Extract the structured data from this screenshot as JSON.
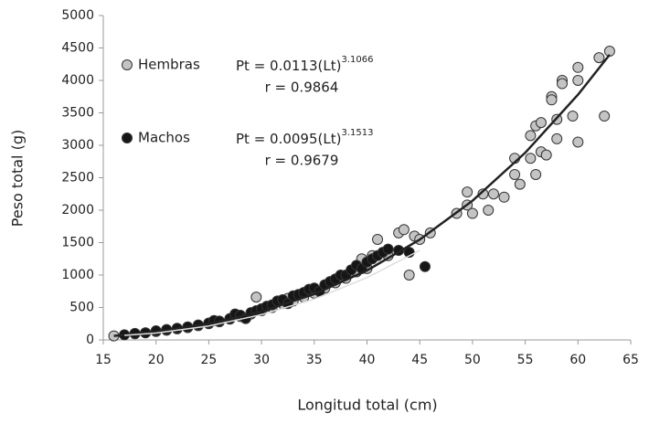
{
  "chart_data": {
    "type": "scatter",
    "xlabel": "Longitud total (cm)",
    "ylabel": "Peso total (g)",
    "xlim": [
      15,
      65
    ],
    "ylim": [
      0,
      5000
    ],
    "xticks": [
      15,
      20,
      25,
      30,
      35,
      40,
      45,
      50,
      55,
      60,
      65
    ],
    "yticks": [
      0,
      500,
      1000,
      1500,
      2000,
      2500,
      3000,
      3500,
      4000,
      4500,
      5000
    ],
    "grid": false,
    "series": [
      {
        "name": "Hembras",
        "color": "#c4c4c4",
        "x": [
          16,
          18,
          19,
          20,
          21,
          22,
          23,
          24,
          25,
          26,
          27,
          28,
          29,
          29.5,
          30,
          31,
          32,
          32.5,
          33,
          34,
          35,
          36,
          37,
          38,
          39,
          39.5,
          40,
          40.5,
          41,
          42,
          43,
          43.5,
          44,
          44.5,
          45,
          46,
          48.5,
          49.5,
          49.5,
          50,
          51,
          51.5,
          52,
          53,
          54,
          54,
          54.5,
          55.5,
          55.5,
          56,
          56,
          56.5,
          56.5,
          57,
          57.5,
          57.5,
          58,
          58,
          58.5,
          58.5,
          59.5,
          60,
          60,
          60,
          62,
          62.5,
          63
        ],
        "values": [
          62,
          95,
          110,
          130,
          150,
          170,
          190,
          220,
          250,
          280,
          320,
          360,
          400,
          660,
          450,
          500,
          560,
          640,
          600,
          660,
          720,
          800,
          880,
          950,
          1050,
          1250,
          1100,
          1300,
          1550,
          1300,
          1650,
          1700,
          1000,
          1600,
          1550,
          1650,
          1950,
          2280,
          2080,
          1950,
          2250,
          2000,
          2250,
          2200,
          2800,
          2550,
          2400,
          3150,
          2800,
          2550,
          3300,
          2900,
          3350,
          2850,
          3750,
          3700,
          3100,
          3400,
          4000,
          3950,
          3450,
          3050,
          4000,
          4200,
          4350,
          3450,
          4450
        ]
      },
      {
        "name": "Machos",
        "color": "#161616",
        "x": [
          17,
          18,
          19,
          20,
          21,
          22,
          23,
          24,
          25,
          25.5,
          26,
          27,
          27.5,
          28,
          28.5,
          29,
          29.5,
          30,
          30.5,
          31,
          31.5,
          32,
          32.5,
          33,
          33.5,
          34,
          34.5,
          35,
          35.5,
          36,
          36.5,
          37,
          37.5,
          38,
          38.5,
          39,
          39.5,
          40,
          40.5,
          41,
          41.5,
          42,
          43,
          44,
          45.5
        ],
        "values": [
          80,
          100,
          110,
          140,
          160,
          180,
          200,
          230,
          260,
          300,
          290,
          330,
          400,
          380,
          330,
          420,
          450,
          480,
          520,
          540,
          600,
          620,
          560,
          680,
          700,
          730,
          780,
          800,
          750,
          850,
          900,
          940,
          1000,
          1000,
          1080,
          1150,
          1100,
          1200,
          1250,
          1300,
          1350,
          1400,
          1380,
          1350,
          1130
        ]
      }
    ],
    "annotations": [
      {
        "text": "Pt = 0.0113(Lt)",
        "exponent": "3.1066",
        "r": "r = 0.9864"
      },
      {
        "text": "Pt = 0.0095(Lt)",
        "exponent": "3.1513",
        "r": "r = 0.9679"
      }
    ],
    "fit_curves": [
      {
        "color": "#222222",
        "x": [
          16,
          20,
          25,
          30,
          35,
          40,
          45,
          50,
          55,
          60,
          63
        ],
        "values": [
          62,
          124,
          249,
          438,
          707,
          1071,
          1547,
          2145,
          2885,
          3780,
          4396
        ]
      },
      {
        "color": "#dddddd",
        "x": [
          17,
          20,
          25,
          30,
          35,
          40,
          45
        ],
        "values": [
          70,
          105,
          215,
          390,
          630,
          960,
          1380
        ]
      }
    ]
  }
}
